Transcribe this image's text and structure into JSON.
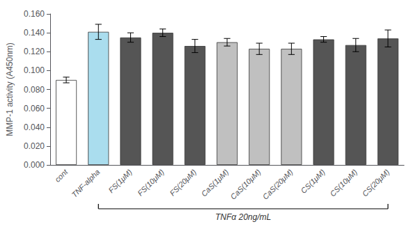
{
  "chart_data": {
    "type": "bar",
    "categories": [
      "cont",
      "TNF-alpha",
      "FS(1μM)",
      "FS(10μM)",
      "FS(20μM)",
      "CaS(1μM)",
      "CaS(10μM)",
      "CaS(20μM)",
      "CS(1μM)",
      "CS(10μM)",
      "CS(20μM)"
    ],
    "values": [
      0.09,
      0.141,
      0.135,
      0.14,
      0.126,
      0.13,
      0.123,
      0.123,
      0.133,
      0.127,
      0.134
    ],
    "errors": [
      0.003,
      0.008,
      0.005,
      0.004,
      0.007,
      0.004,
      0.006,
      0.006,
      0.003,
      0.007,
      0.009
    ],
    "colors": [
      "#ffffff",
      "#aaddee",
      "#555555",
      "#555555",
      "#555555",
      "#c0c0c0",
      "#c0c0c0",
      "#c0c0c0",
      "#555555",
      "#555555",
      "#555555"
    ],
    "ylabel": "MMP-1 activity (A450nm)",
    "ylim": [
      0.0,
      0.16
    ],
    "yticks": [
      {
        "value": 0.0,
        "label": "0.000"
      },
      {
        "value": 0.02,
        "label": "0.020"
      },
      {
        "value": 0.04,
        "label": "0.040"
      },
      {
        "value": 0.06,
        "label": "0.060"
      },
      {
        "value": 0.08,
        "label": "0.080"
      },
      {
        "value": 0.1,
        "label": "0.100"
      },
      {
        "value": 0.12,
        "label": "0.120"
      },
      {
        "value": 0.14,
        "label": "0.140"
      },
      {
        "value": 0.16,
        "label": "0.160"
      }
    ],
    "annotations": [
      {
        "text": "TNFα 20ng/mL",
        "from": "TNF-alpha",
        "to": "CS(20μM)"
      }
    ],
    "grid": false
  }
}
